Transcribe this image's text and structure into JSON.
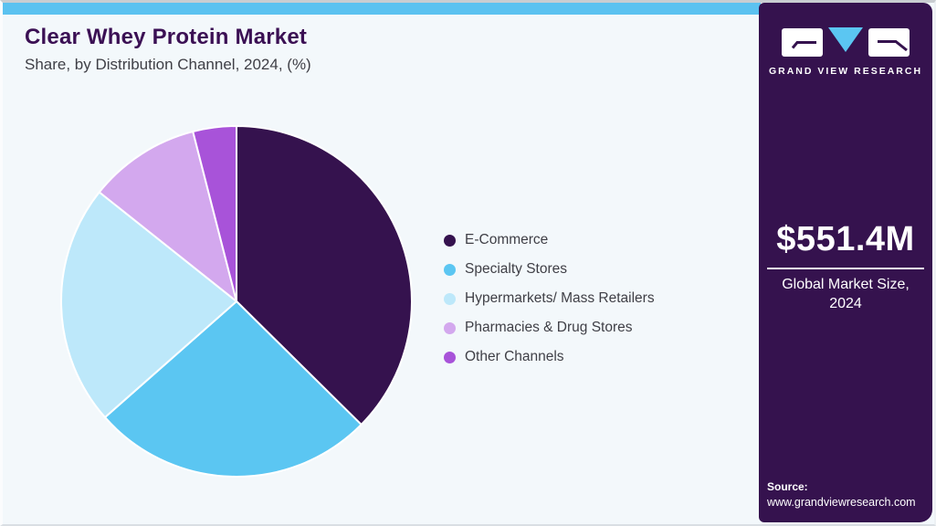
{
  "page": {
    "title": "Clear Whey Protein Market",
    "subtitle": "Share, by Distribution Channel, 2024, (%)"
  },
  "theme": {
    "topbar_color": "#5BC2F0",
    "canvas_bg": "#F3F8FB",
    "title_color": "#3B1054",
    "subtitle_color": "#3F3F46",
    "sidebar_bg": "#35124E",
    "accent_blue": "#5BC6F2"
  },
  "chart_data": {
    "type": "pie",
    "title": "Clear Whey Protein Market Share, by Distribution Channel, 2024, (%)",
    "unit": "%",
    "start_angle_deg": 0,
    "direction": "clockwise",
    "legend_position": "right",
    "slices": [
      {
        "label": "E-Commerce",
        "value": 37.4,
        "color": "#35124E"
      },
      {
        "label": "Specialty Stores",
        "value": 26.1,
        "color": "#5BC6F2"
      },
      {
        "label": "Hypermarkets/ Mass Retailers",
        "value": 22.2,
        "color": "#BDE8FA"
      },
      {
        "label": "Pharmacies & Drug Stores",
        "value": 10.3,
        "color": "#D3A8EE"
      },
      {
        "label": "Other Channels",
        "value": 4.0,
        "color": "#A853D9"
      }
    ]
  },
  "sidebar": {
    "logo_wordmark": "GRAND VIEW RESEARCH",
    "market_size_value": "$551.4M",
    "market_size_caption": "Global Market Size, 2024",
    "source_label": "Source:",
    "source_url": "www.grandviewresearch.com"
  }
}
